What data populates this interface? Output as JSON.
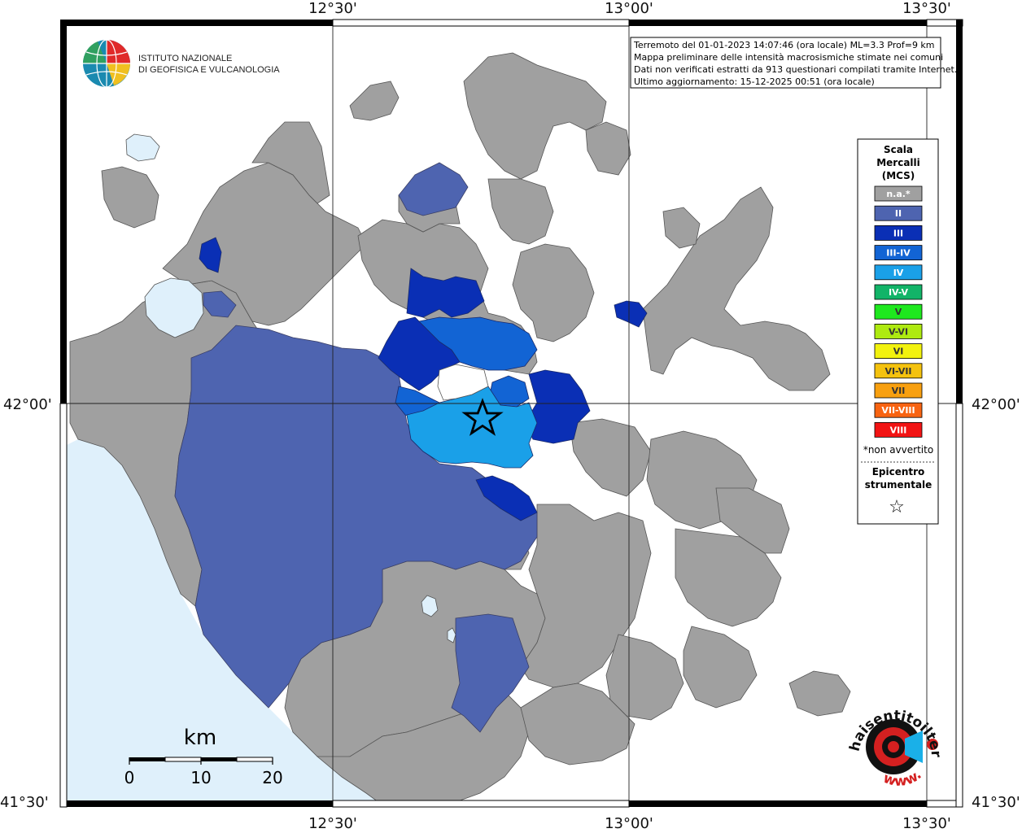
{
  "axes": {
    "top_lon": [
      "12°30'",
      "13°00'",
      "13°30'"
    ],
    "bottom_lon": [
      "12°30'",
      "13°00'",
      "13°30'"
    ],
    "left_lat": [
      "42°00'",
      "41°30'"
    ],
    "right_lat": [
      "42°00'",
      "41°30'"
    ]
  },
  "info": {
    "line1": "Terremoto del 01-01-2023 14:07:46 (ora locale) ML=3.3 Prof=9 km",
    "line2": "Mappa preliminare delle intensità macrosismiche stimate nei comuni",
    "line3": "Dati non verificati estratti da 913 questionari compilati tramite Internet.",
    "line4": "Ultimo aggiornamento: 15-12-2025 00:51 (ora locale)"
  },
  "institute": {
    "line1": "ISTITUTO NAZIONALE",
    "line2": "DI GEOFISICA E VULCANOLOGIA"
  },
  "legend": {
    "title1": "Scala",
    "title2": "Mercalli",
    "title3": "(MCS)",
    "items": [
      {
        "label": "n.a.*",
        "color": "#a0a0a0"
      },
      {
        "label": "II",
        "color": "#4e64b0"
      },
      {
        "label": "III",
        "color": "#0a2fb5"
      },
      {
        "label": "III-IV",
        "color": "#1264d4"
      },
      {
        "label": "IV",
        "color": "#1aa0e8"
      },
      {
        "label": "IV-V",
        "color": "#12b468"
      },
      {
        "label": "V",
        "color": "#1ee81e"
      },
      {
        "label": "V-VI",
        "color": "#aeea10"
      },
      {
        "label": "VI",
        "color": "#f2f20e"
      },
      {
        "label": "VI-VII",
        "color": "#f4c20e"
      },
      {
        "label": "VII",
        "color": "#f8a010"
      },
      {
        "label": "VII-VIII",
        "color": "#f86412"
      },
      {
        "label": "VIII",
        "color": "#f21414"
      }
    ],
    "note": "*non avvertito",
    "epicenter1": "Epicentro",
    "epicenter2": "strumentale",
    "epicenter_symbol": "☆"
  },
  "scalebar": {
    "unit": "km",
    "labels": [
      "0",
      "10",
      "20"
    ]
  },
  "branding": {
    "site": "haisentitoilterremoto.it",
    "prefix": "www."
  },
  "colors": {
    "sea": "#dff0fb",
    "land_na": "#a0a0a0",
    "unsurveyed": "#ffffff",
    "border": "#555555"
  }
}
